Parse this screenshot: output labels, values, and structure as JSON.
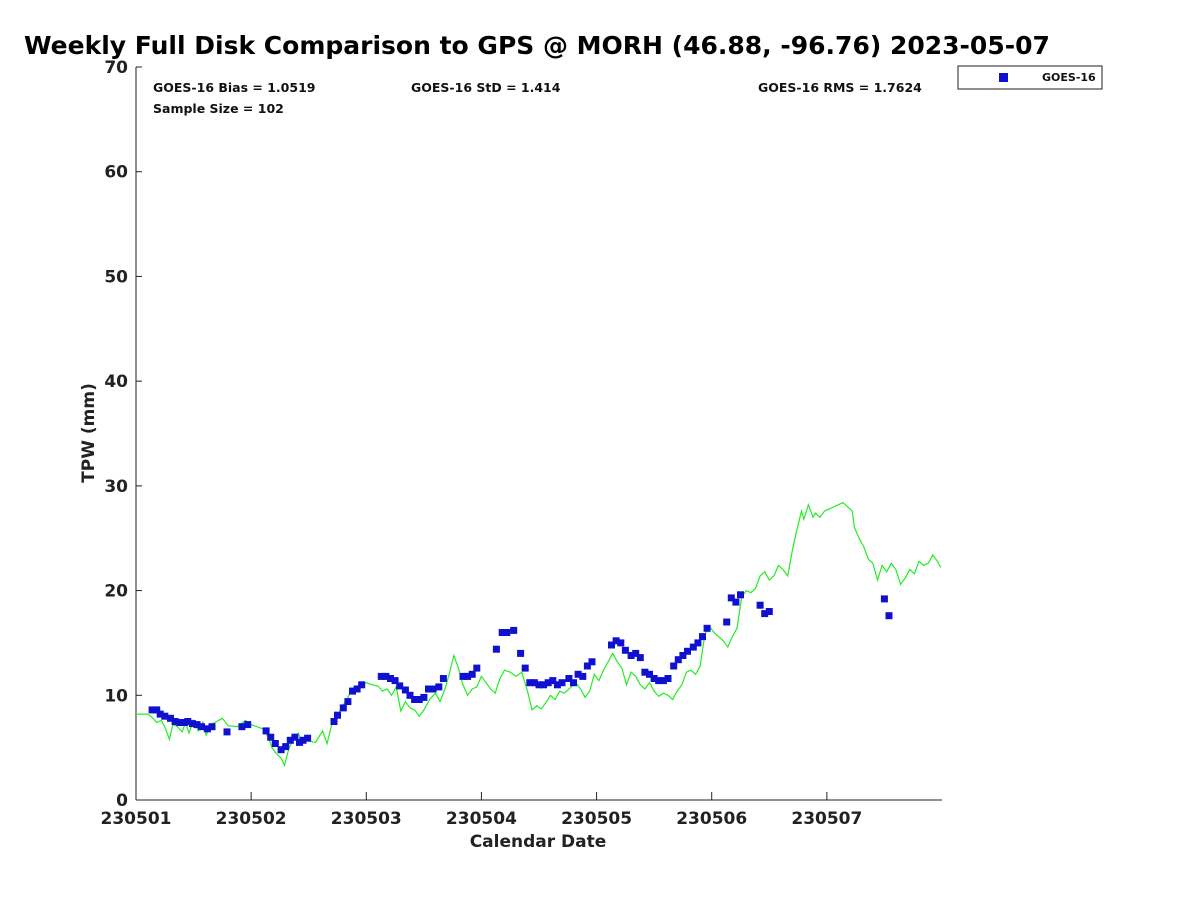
{
  "chart_data": {
    "type": "scatter",
    "title": "Weekly Full Disk Comparison to GPS @ MORH (46.88, -96.76) 2023-05-07",
    "xlabel": "Calendar Date",
    "ylabel": "TPW (mm)",
    "xlim": [
      0,
      7
    ],
    "ylim": [
      0,
      70
    ],
    "xticks": [
      {
        "value": 0,
        "label": "230501"
      },
      {
        "value": 1,
        "label": "230502"
      },
      {
        "value": 2,
        "label": "230503"
      },
      {
        "value": 3,
        "label": "230504"
      },
      {
        "value": 4,
        "label": "230505"
      },
      {
        "value": 5,
        "label": "230506"
      },
      {
        "value": 6,
        "label": "230507"
      }
    ],
    "yticks": [
      0,
      10,
      20,
      30,
      40,
      50,
      60,
      70
    ],
    "stats": {
      "bias": "GOES-16 Bias = 1.0519",
      "std": "GOES-16 StD = 1.414",
      "rms": "GOES-16 RMS = 1.7624",
      "sample_size": "Sample Size = 102"
    },
    "legend": {
      "label": "GOES-16",
      "color": "#1010d0",
      "position": "top-right"
    },
    "series": [
      {
        "name": "GOES-16",
        "kind": "markers",
        "color": "#1010d0",
        "points": [
          [
            0.14,
            8.6
          ],
          [
            0.18,
            8.6
          ],
          [
            0.21,
            8.2
          ],
          [
            0.25,
            8.0
          ],
          [
            0.3,
            7.8
          ],
          [
            0.34,
            7.5
          ],
          [
            0.38,
            7.4
          ],
          [
            0.42,
            7.4
          ],
          [
            0.45,
            7.5
          ],
          [
            0.49,
            7.3
          ],
          [
            0.53,
            7.2
          ],
          [
            0.57,
            7.0
          ],
          [
            0.62,
            6.8
          ],
          [
            0.66,
            7.0
          ],
          [
            0.79,
            6.5
          ],
          [
            0.92,
            7.0
          ],
          [
            0.97,
            7.2
          ],
          [
            1.13,
            6.6
          ],
          [
            1.17,
            6.0
          ],
          [
            1.21,
            5.4
          ],
          [
            1.26,
            4.8
          ],
          [
            1.3,
            5.1
          ],
          [
            1.34,
            5.7
          ],
          [
            1.38,
            6.0
          ],
          [
            1.42,
            5.5
          ],
          [
            1.45,
            5.7
          ],
          [
            1.49,
            5.9
          ],
          [
            1.72,
            7.5
          ],
          [
            1.75,
            8.1
          ],
          [
            1.8,
            8.8
          ],
          [
            1.84,
            9.4
          ],
          [
            1.88,
            10.4
          ],
          [
            1.92,
            10.6
          ],
          [
            1.96,
            11.0
          ],
          [
            2.13,
            11.8
          ],
          [
            2.17,
            11.8
          ],
          [
            2.21,
            11.6
          ],
          [
            2.25,
            11.4
          ],
          [
            2.29,
            10.9
          ],
          [
            2.34,
            10.5
          ],
          [
            2.38,
            10.0
          ],
          [
            2.42,
            9.6
          ],
          [
            2.46,
            9.6
          ],
          [
            2.5,
            9.8
          ],
          [
            2.54,
            10.6
          ],
          [
            2.58,
            10.6
          ],
          [
            2.63,
            10.8
          ],
          [
            2.67,
            11.6
          ],
          [
            2.84,
            11.8
          ],
          [
            2.88,
            11.8
          ],
          [
            2.92,
            12.0
          ],
          [
            2.96,
            12.6
          ],
          [
            3.13,
            14.4
          ],
          [
            3.18,
            16.0
          ],
          [
            3.22,
            16.0
          ],
          [
            3.28,
            16.2
          ],
          [
            3.34,
            14.0
          ],
          [
            3.38,
            12.6
          ],
          [
            3.42,
            11.2
          ],
          [
            3.46,
            11.2
          ],
          [
            3.5,
            11.0
          ],
          [
            3.54,
            11.0
          ],
          [
            3.58,
            11.2
          ],
          [
            3.62,
            11.4
          ],
          [
            3.66,
            11.0
          ],
          [
            3.7,
            11.2
          ],
          [
            3.76,
            11.6
          ],
          [
            3.8,
            11.2
          ],
          [
            3.84,
            12.0
          ],
          [
            3.88,
            11.8
          ],
          [
            3.92,
            12.8
          ],
          [
            3.96,
            13.2
          ],
          [
            4.13,
            14.8
          ],
          [
            4.17,
            15.2
          ],
          [
            4.21,
            15.0
          ],
          [
            4.25,
            14.3
          ],
          [
            4.3,
            13.8
          ],
          [
            4.34,
            14.0
          ],
          [
            4.38,
            13.6
          ],
          [
            4.42,
            12.2
          ],
          [
            4.46,
            12.0
          ],
          [
            4.5,
            11.6
          ],
          [
            4.54,
            11.4
          ],
          [
            4.58,
            11.4
          ],
          [
            4.62,
            11.6
          ],
          [
            4.67,
            12.8
          ],
          [
            4.71,
            13.4
          ],
          [
            4.75,
            13.8
          ],
          [
            4.79,
            14.2
          ],
          [
            4.84,
            14.6
          ],
          [
            4.88,
            15.0
          ],
          [
            4.92,
            15.6
          ],
          [
            4.96,
            16.4
          ],
          [
            5.13,
            17.0
          ],
          [
            5.17,
            19.3
          ],
          [
            5.21,
            18.9
          ],
          [
            5.25,
            19.6
          ],
          [
            5.42,
            18.6
          ],
          [
            5.46,
            17.8
          ],
          [
            5.5,
            18.0
          ],
          [
            6.5,
            19.2
          ],
          [
            6.54,
            17.6
          ]
        ]
      },
      {
        "name": "GPS",
        "kind": "line",
        "color": "#22ee22",
        "points": [
          [
            0.0,
            8.2
          ],
          [
            0.1,
            8.2
          ],
          [
            0.14,
            7.9
          ],
          [
            0.18,
            7.4
          ],
          [
            0.22,
            7.6
          ],
          [
            0.25,
            7.0
          ],
          [
            0.29,
            5.8
          ],
          [
            0.32,
            7.2
          ],
          [
            0.36,
            7.0
          ],
          [
            0.4,
            6.5
          ],
          [
            0.43,
            7.4
          ],
          [
            0.46,
            6.4
          ],
          [
            0.5,
            7.6
          ],
          [
            0.54,
            6.6
          ],
          [
            0.58,
            7.4
          ],
          [
            0.61,
            6.2
          ],
          [
            0.65,
            7.2
          ],
          [
            0.7,
            7.5
          ],
          [
            0.75,
            7.8
          ],
          [
            0.8,
            7.1
          ],
          [
            0.88,
            7.0
          ],
          [
            0.95,
            7.6
          ],
          [
            1.0,
            7.2
          ],
          [
            1.05,
            7.0
          ],
          [
            1.1,
            6.8
          ],
          [
            1.15,
            6.0
          ],
          [
            1.18,
            5.0
          ],
          [
            1.22,
            4.4
          ],
          [
            1.26,
            4.0
          ],
          [
            1.29,
            3.3
          ],
          [
            1.33,
            5.0
          ],
          [
            1.37,
            5.8
          ],
          [
            1.41,
            6.4
          ],
          [
            1.44,
            5.4
          ],
          [
            1.48,
            6.0
          ],
          [
            1.52,
            5.6
          ],
          [
            1.56,
            5.5
          ],
          [
            1.62,
            6.6
          ],
          [
            1.66,
            5.4
          ],
          [
            1.7,
            7.2
          ],
          [
            1.74,
            7.6
          ],
          [
            1.78,
            8.8
          ],
          [
            1.82,
            9.4
          ],
          [
            1.86,
            10.2
          ],
          [
            1.9,
            10.8
          ],
          [
            1.95,
            11.0
          ],
          [
            2.0,
            11.2
          ],
          [
            2.05,
            11.0
          ],
          [
            2.1,
            10.9
          ],
          [
            2.14,
            10.4
          ],
          [
            2.18,
            10.6
          ],
          [
            2.22,
            10.0
          ],
          [
            2.26,
            10.8
          ],
          [
            2.3,
            8.5
          ],
          [
            2.34,
            9.4
          ],
          [
            2.38,
            8.8
          ],
          [
            2.42,
            8.6
          ],
          [
            2.46,
            8.0
          ],
          [
            2.5,
            8.6
          ],
          [
            2.55,
            9.6
          ],
          [
            2.6,
            10.2
          ],
          [
            2.64,
            9.4
          ],
          [
            2.68,
            10.5
          ],
          [
            2.72,
            12.0
          ],
          [
            2.76,
            13.8
          ],
          [
            2.8,
            12.6
          ],
          [
            2.84,
            11.0
          ],
          [
            2.88,
            10.0
          ],
          [
            2.92,
            10.6
          ],
          [
            2.96,
            10.8
          ],
          [
            3.0,
            11.8
          ],
          [
            3.04,
            11.2
          ],
          [
            3.08,
            10.6
          ],
          [
            3.12,
            10.2
          ],
          [
            3.16,
            11.6
          ],
          [
            3.2,
            12.4
          ],
          [
            3.25,
            12.2
          ],
          [
            3.3,
            11.8
          ],
          [
            3.35,
            12.2
          ],
          [
            3.4,
            10.4
          ],
          [
            3.44,
            8.6
          ],
          [
            3.48,
            9.0
          ],
          [
            3.52,
            8.7
          ],
          [
            3.56,
            9.3
          ],
          [
            3.6,
            10.0
          ],
          [
            3.64,
            9.6
          ],
          [
            3.68,
            10.4
          ],
          [
            3.72,
            10.2
          ],
          [
            3.78,
            10.8
          ],
          [
            3.82,
            11.2
          ],
          [
            3.86,
            10.6
          ],
          [
            3.9,
            9.8
          ],
          [
            3.94,
            10.4
          ],
          [
            3.98,
            12.0
          ],
          [
            4.02,
            11.4
          ],
          [
            4.06,
            12.4
          ],
          [
            4.1,
            13.2
          ],
          [
            4.14,
            14.0
          ],
          [
            4.18,
            13.2
          ],
          [
            4.22,
            12.6
          ],
          [
            4.26,
            11.0
          ],
          [
            4.3,
            12.2
          ],
          [
            4.34,
            11.8
          ],
          [
            4.38,
            11.0
          ],
          [
            4.42,
            10.6
          ],
          [
            4.46,
            11.2
          ],
          [
            4.5,
            10.4
          ],
          [
            4.54,
            9.9
          ],
          [
            4.58,
            10.2
          ],
          [
            4.62,
            10.0
          ],
          [
            4.66,
            9.6
          ],
          [
            4.7,
            10.4
          ],
          [
            4.74,
            11.0
          ],
          [
            4.78,
            12.2
          ],
          [
            4.82,
            12.4
          ],
          [
            4.86,
            12.0
          ],
          [
            4.9,
            12.8
          ],
          [
            4.94,
            15.8
          ],
          [
            4.98,
            16.6
          ],
          [
            5.02,
            16.0
          ],
          [
            5.06,
            15.6
          ],
          [
            5.1,
            15.2
          ],
          [
            5.14,
            14.6
          ],
          [
            5.18,
            15.6
          ],
          [
            5.22,
            16.4
          ],
          [
            5.26,
            19.4
          ],
          [
            5.3,
            20.0
          ],
          [
            5.34,
            19.8
          ],
          [
            5.38,
            20.2
          ],
          [
            5.42,
            21.4
          ],
          [
            5.46,
            21.8
          ],
          [
            5.5,
            21.0
          ],
          [
            5.54,
            21.4
          ],
          [
            5.58,
            22.4
          ],
          [
            5.62,
            22.0
          ],
          [
            5.66,
            21.4
          ],
          [
            5.7,
            23.8
          ],
          [
            5.74,
            25.8
          ],
          [
            5.78,
            27.6
          ],
          [
            5.8,
            26.8
          ],
          [
            5.84,
            28.2
          ],
          [
            5.88,
            27.0
          ],
          [
            5.9,
            27.4
          ],
          [
            5.94,
            27.0
          ],
          [
            5.98,
            27.6
          ],
          [
            6.02,
            27.8
          ],
          [
            6.06,
            28.0
          ],
          [
            6.1,
            28.2
          ],
          [
            6.14,
            28.4
          ],
          [
            6.18,
            28.0
          ],
          [
            6.22,
            27.6
          ],
          [
            6.24,
            26.0
          ],
          [
            6.28,
            25.0
          ],
          [
            6.32,
            24.2
          ],
          [
            6.36,
            23.0
          ],
          [
            6.4,
            22.6
          ],
          [
            6.44,
            21.0
          ],
          [
            6.48,
            22.4
          ],
          [
            6.52,
            21.8
          ],
          [
            6.56,
            22.6
          ],
          [
            6.6,
            22.0
          ],
          [
            6.64,
            20.6
          ],
          [
            6.68,
            21.2
          ],
          [
            6.72,
            22.0
          ],
          [
            6.76,
            21.6
          ],
          [
            6.8,
            22.8
          ],
          [
            6.84,
            22.4
          ],
          [
            6.88,
            22.6
          ],
          [
            6.92,
            23.4
          ],
          [
            6.96,
            22.8
          ],
          [
            6.99,
            22.2
          ]
        ]
      }
    ]
  }
}
